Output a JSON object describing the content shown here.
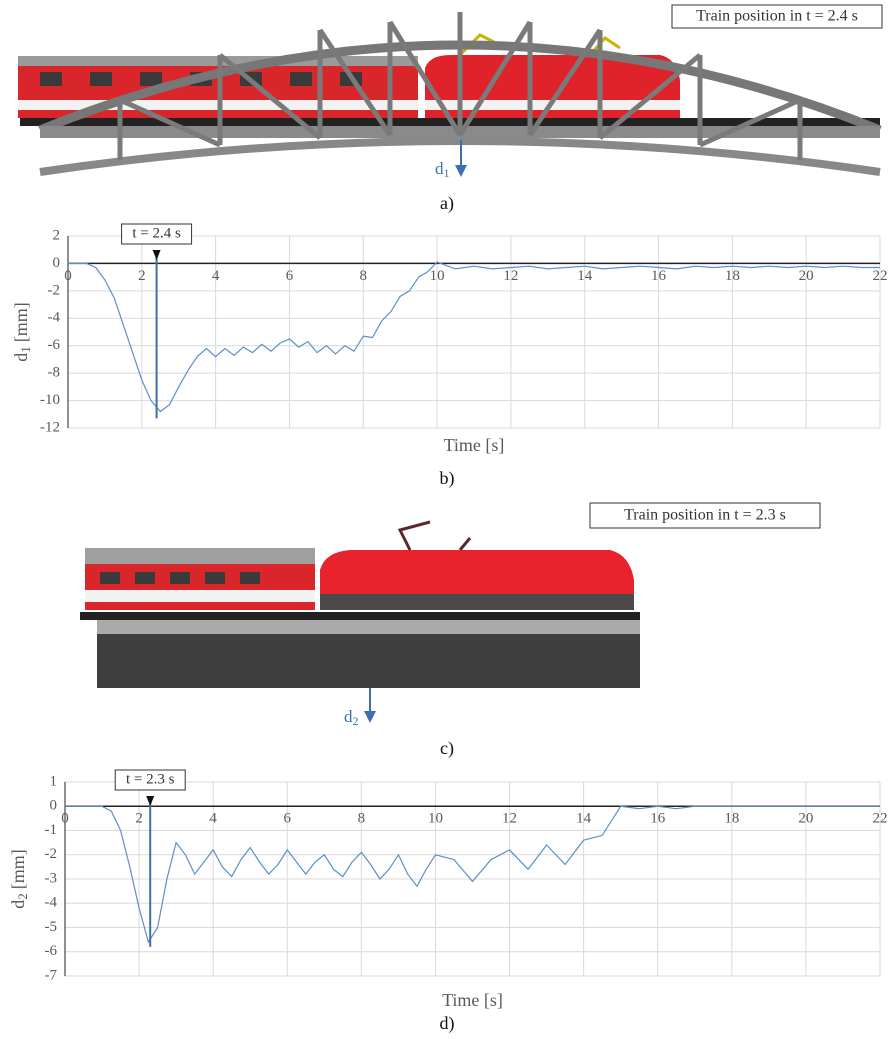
{
  "panels": [
    {
      "label": "Train position in t = 2.4 s",
      "sensor": "d",
      "sensor_sub": "1",
      "caption": "a)"
    },
    {
      "label": "Train position in t = 2.3 s",
      "sensor": "d",
      "sensor_sub": "2",
      "caption": "c)"
    }
  ],
  "chart_data": [
    {
      "type": "line",
      "caption": "b)",
      "x_label": "Time [s]",
      "y_label": {
        "main": "d",
        "sub": "1",
        "unit": "[mm]"
      },
      "xlim": [
        0,
        22
      ],
      "xticks": [
        0,
        2,
        4,
        6,
        8,
        10,
        12,
        14,
        16,
        18,
        20,
        22
      ],
      "ylim": [
        -12,
        2
      ],
      "yticks": [
        -12,
        -10,
        -8,
        -6,
        -4,
        -2,
        0,
        2
      ],
      "grid": true,
      "marker": {
        "label": "t = 2.4 s",
        "x": 2.4,
        "y": -11.3
      },
      "x": [
        0,
        0.25,
        0.5,
        0.75,
        1,
        1.25,
        1.5,
        1.75,
        2,
        2.25,
        2.5,
        2.75,
        3,
        3.25,
        3.5,
        3.75,
        4,
        4.25,
        4.5,
        4.75,
        5,
        5.25,
        5.5,
        5.75,
        6,
        6.25,
        6.5,
        6.75,
        7,
        7.25,
        7.5,
        7.75,
        8,
        8.25,
        8.5,
        8.75,
        9,
        9.25,
        9.5,
        9.75,
        10,
        10.5,
        11,
        11.5,
        12,
        12.5,
        13,
        13.5,
        14,
        14.5,
        15,
        15.5,
        16,
        16.5,
        17,
        17.5,
        18,
        18.5,
        19,
        19.5,
        20,
        20.5,
        21,
        21.5,
        22
      ],
      "series": [
        {
          "color": "#5b8fc9",
          "values": [
            0,
            0,
            0,
            -0.3,
            -1.2,
            -2.5,
            -4.5,
            -6.5,
            -8.5,
            -10,
            -10.8,
            -10.3,
            -9,
            -7.8,
            -6.8,
            -6.2,
            -6.8,
            -6.2,
            -6.7,
            -6.1,
            -6.5,
            -5.9,
            -6.4,
            -5.8,
            -5.5,
            -6.1,
            -5.7,
            -6.5,
            -6.0,
            -6.6,
            -6.0,
            -6.4,
            -5.3,
            -5.4,
            -4.2,
            -3.5,
            -2.4,
            -2.0,
            -1.0,
            -0.6,
            0.1,
            -0.4,
            -0.2,
            -0.4,
            -0.3,
            -0.2,
            -0.4,
            -0.3,
            -0.2,
            -0.4,
            -0.3,
            -0.2,
            -0.3,
            -0.4,
            -0.2,
            -0.3,
            -0.2,
            -0.3,
            -0.2,
            -0.3,
            -0.2,
            -0.3,
            -0.2,
            -0.3,
            -0.3
          ]
        }
      ]
    },
    {
      "type": "line",
      "caption": "d)",
      "x_label": "Time [s]",
      "y_label": {
        "main": "d",
        "sub": "2",
        "unit": "[mm]"
      },
      "xlim": [
        0,
        22
      ],
      "xticks": [
        0,
        2,
        4,
        6,
        8,
        10,
        12,
        14,
        16,
        18,
        20,
        22
      ],
      "ylim": [
        -7,
        1
      ],
      "yticks": [
        -7,
        -6,
        -5,
        -4,
        -3,
        -2,
        -1,
        0,
        1
      ],
      "grid": true,
      "marker": {
        "label": "t = 2.3 s",
        "x": 2.3,
        "y": -5.8
      },
      "x": [
        0,
        0.25,
        0.5,
        0.75,
        1,
        1.25,
        1.5,
        1.75,
        2,
        2.25,
        2.5,
        2.75,
        3,
        3.25,
        3.5,
        3.75,
        4,
        4.25,
        4.5,
        4.75,
        5,
        5.25,
        5.5,
        5.75,
        6,
        6.25,
        6.5,
        6.75,
        7,
        7.25,
        7.5,
        7.75,
        8,
        8.25,
        8.5,
        8.75,
        9,
        9.25,
        9.5,
        9.75,
        10,
        10.5,
        11,
        11.5,
        12,
        12.5,
        13,
        13.5,
        14,
        14.5,
        15,
        15.5,
        16,
        16.5,
        17,
        17.5,
        18,
        18.5,
        19,
        19.5,
        20,
        20.5,
        21,
        21.5,
        22
      ],
      "series": [
        {
          "color": "#5b8fc9",
          "values": [
            0,
            0,
            0,
            0,
            0,
            -0.2,
            -1,
            -2.5,
            -4.2,
            -5.6,
            -5,
            -3,
            -1.5,
            -2,
            -2.8,
            -2.3,
            -1.8,
            -2.5,
            -2.9,
            -2.2,
            -1.7,
            -2.3,
            -2.8,
            -2.4,
            -1.8,
            -2.3,
            -2.8,
            -2.3,
            -2.0,
            -2.6,
            -2.9,
            -2.3,
            -1.9,
            -2.4,
            -3.0,
            -2.6,
            -2.0,
            -2.8,
            -3.3,
            -2.6,
            -2.0,
            -2.2,
            -3.1,
            -2.2,
            -1.8,
            -2.6,
            -1.6,
            -2.4,
            -1.4,
            -1.2,
            0,
            -0.1,
            0,
            -0.1,
            0,
            0,
            0,
            0,
            0,
            0,
            0,
            0,
            0,
            0,
            0
          ]
        }
      ]
    }
  ]
}
